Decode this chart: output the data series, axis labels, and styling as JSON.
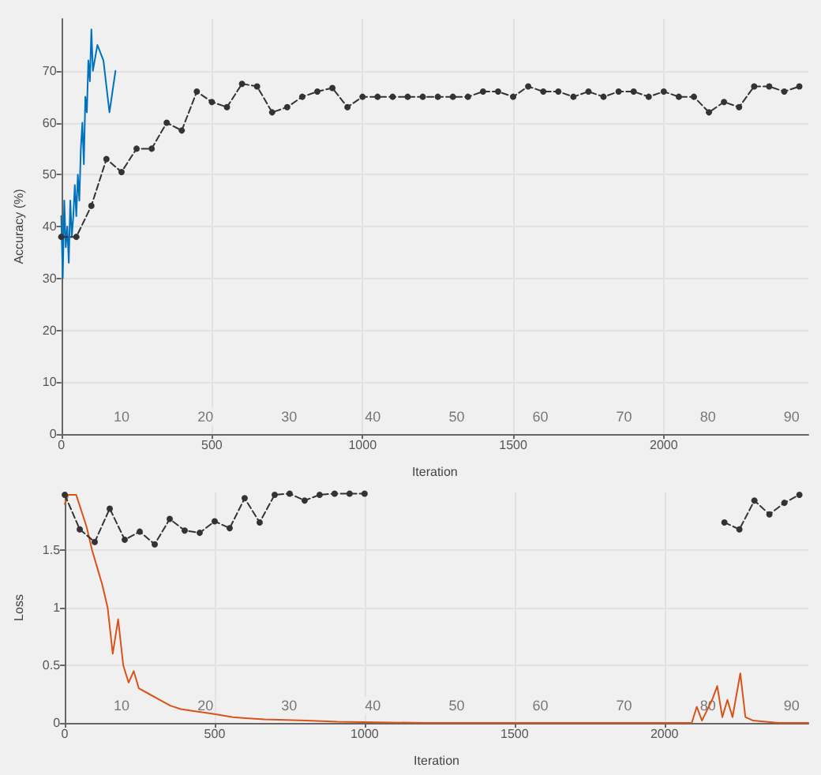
{
  "chart_data": [
    {
      "type": "line",
      "ylabel": "Accuracy (%)",
      "xlabel": "Iteration",
      "xlim": [
        0,
        2480
      ],
      "xticks": [
        0,
        500,
        1000,
        1500,
        2000
      ],
      "ylim": [
        0,
        80
      ],
      "yticks": [
        0,
        10,
        20,
        30,
        40,
        50,
        60,
        70
      ],
      "grid": true,
      "series": [
        {
          "color": "#0072bd",
          "marker": "none",
          "line_style": "solid",
          "x": [
            0,
            5,
            10,
            15,
            20,
            25,
            30,
            35,
            40,
            45,
            50,
            55,
            60,
            65,
            70,
            75,
            80,
            85,
            90,
            95,
            100,
            105,
            120,
            140,
            160,
            180
          ],
          "values": [
            42,
            30,
            45,
            36,
            40,
            33,
            45,
            38,
            42,
            48,
            42,
            50,
            45,
            55,
            60,
            52,
            65,
            62,
            72,
            68,
            78,
            70,
            75,
            72,
            62,
            70
          ]
        },
        {
          "color": "#333333",
          "marker": "circle",
          "line_style": "dashed",
          "x": [
            0,
            50,
            100,
            150,
            200,
            250,
            300,
            350,
            400,
            450,
            500,
            550,
            600,
            650,
            700,
            750,
            800,
            850,
            900,
            950,
            1000,
            1050,
            1100,
            1150,
            1200,
            1250,
            1300,
            1350,
            1400,
            1450,
            1500,
            1550,
            1600,
            1650,
            1700,
            1750,
            1800,
            1850,
            1900,
            1950,
            2000,
            2050,
            2100,
            2150,
            2200,
            2250,
            2300,
            2350,
            2400,
            2450
          ],
          "values": [
            38,
            38,
            44,
            53,
            50.5,
            55,
            55,
            60,
            58.5,
            66,
            64,
            63,
            67.5,
            67,
            62,
            63,
            65,
            66,
            66.7,
            63,
            65,
            65,
            65,
            65,
            65,
            65,
            65,
            65,
            66,
            66,
            65,
            67,
            66,
            66,
            65,
            66,
            65,
            66,
            66,
            65,
            66,
            65,
            65,
            62,
            64,
            63,
            67,
            67,
            66,
            67
          ]
        }
      ],
      "annotations": [
        "10",
        "20",
        "30",
        "40",
        "50",
        "60",
        "70",
        "80",
        "90"
      ]
    },
    {
      "type": "line",
      "ylabel": "Loss",
      "xlabel": "Iteration",
      "xlim": [
        0,
        2480
      ],
      "xticks": [
        0,
        500,
        1000,
        1500,
        2000
      ],
      "ylim": [
        0,
        2
      ],
      "yticks": [
        0,
        0.5,
        1,
        1.5
      ],
      "grid": true,
      "series": [
        {
          "color": "#d95319",
          "marker": "none",
          "line_style": "solid",
          "x": [
            0,
            12,
            38,
            73,
            91,
            108,
            125,
            143,
            160,
            178,
            195,
            213,
            230,
            247,
            282,
            317,
            352,
            387,
            439,
            491,
            561,
            613,
            666,
            805,
            909,
            1200,
            1600,
            2091,
            2108,
            2125,
            2159,
            2176,
            2193,
            2210,
            2227,
            2253,
            2270,
            2296,
            2380,
            2480
          ],
          "values": [
            1.9,
            1.98,
            1.98,
            1.7,
            1.5,
            1.35,
            1.2,
            1.0,
            0.6,
            0.9,
            0.5,
            0.35,
            0.45,
            0.3,
            0.25,
            0.2,
            0.15,
            0.12,
            0.1,
            0.08,
            0.05,
            0.04,
            0.03,
            0.02,
            0.01,
            0,
            0,
            0,
            0.14,
            0.02,
            0.2,
            0.32,
            0.05,
            0.2,
            0.05,
            0.43,
            0.05,
            0.02,
            0,
            0
          ]
        },
        {
          "color": "#333333",
          "marker": "circle",
          "line_style": "dashed",
          "x": [
            0,
            50,
            100,
            150,
            200,
            250,
            300,
            350,
            400,
            450,
            500,
            550,
            600,
            650,
            700,
            750,
            800,
            850,
            900,
            950,
            1000,
            1050,
            2150,
            2200,
            2250,
            2300,
            2350,
            2400,
            2450
          ],
          "values": [
            1.98,
            1.68,
            1.57,
            1.86,
            1.59,
            1.66,
            1.55,
            1.77,
            1.67,
            1.65,
            1.75,
            1.69,
            1.95,
            1.74,
            1.98,
            1.99,
            1.93,
            1.98,
            1.99,
            1.99,
            1.99,
            null,
            null,
            1.74,
            1.68,
            1.93,
            1.81,
            1.91,
            1.98
          ]
        }
      ],
      "annotations": [
        "10",
        "20",
        "30",
        "40",
        "50",
        "60",
        "70",
        "80",
        "90"
      ]
    }
  ]
}
